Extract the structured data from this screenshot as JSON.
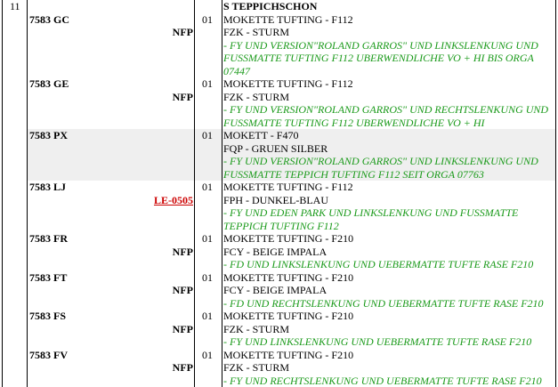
{
  "group": {
    "number": "11",
    "title": "S TEPPICHSCHON"
  },
  "colors": {
    "note": "#1a9a1a",
    "link": "#cc0000",
    "highlight_row": "#efefef"
  },
  "rows": [
    {
      "code": "7583 GC",
      "flag": "NFP",
      "qty": "01",
      "material": "MOKETTE TUFTING - F112",
      "color": "FZK - STURM",
      "note": "- FY UND VERSION\"ROLAND GARROS\" UND LINKSLENKUNG UND FUSSMATTE TUFTING F112 UBERWENDLICHE VO + HI BIS ORGA 07447"
    },
    {
      "code": "7583 GE",
      "flag": "NFP",
      "qty": "01",
      "material": "MOKETTE TUFTING - F112",
      "color": "FZK - STURM",
      "note": "- FY UND VERSION\"ROLAND GARROS\" UND RECHTSLENKUNG UND FUSSMATTE TUFTING F112 UBERWENDLICHE VO + HI"
    },
    {
      "code": "7583 PX",
      "flag": "",
      "qty": "01",
      "material": "MOKETT - F470",
      "color": "FQP - GRUEN SILBER",
      "note": "- FY UND VERSION\"ROLAND GARROS\" UND LINKSLENKUNG UND FUSSMATTE TEPPICH TUFTING F112 SEIT ORGA 07763"
    },
    {
      "code": "7583 LJ",
      "flag": "LE-0505",
      "qty": "01",
      "material": "MOKETTE TUFTING - F112",
      "color": "FPH - DUNKEL-BLAU",
      "note": "- FY UND EDEN PARK UND LINKSLENKUNG UND FUSSMATTE TEPPICH TUFTING F112"
    },
    {
      "code": "7583 FR",
      "flag": "NFP",
      "qty": "01",
      "material": "MOKETTE TUFTING - F210",
      "color": "FCY - BEIGE IMPALA",
      "note": "- FD UND LINKSLENKUNG UND UEBERMATTE TUFTE RASE F210"
    },
    {
      "code": "7583 FT",
      "flag": "NFP",
      "qty": "01",
      "material": "MOKETTE TUFTING - F210",
      "color": "FCY - BEIGE IMPALA",
      "note": "- FD UND RECHTSLENKUNG UND UEBERMATTE TUFTE RASE F210"
    },
    {
      "code": "7583 FS",
      "flag": "NFP",
      "qty": "01",
      "material": "MOKETTE TUFTING - F210",
      "color": "FZK - STURM",
      "note": "- FY UND LINKSLENKUNG UND UEBERMATTE TUFTE RASE F210"
    },
    {
      "code": "7583 FV",
      "flag": "NFP",
      "qty": "01",
      "material": "MOKETTE TUFTING - F210",
      "color": "FZK - STURM",
      "note": "- FY UND RECHTSLENKUNG UND UEBERMATTE TUFTE RASE F210"
    }
  ]
}
